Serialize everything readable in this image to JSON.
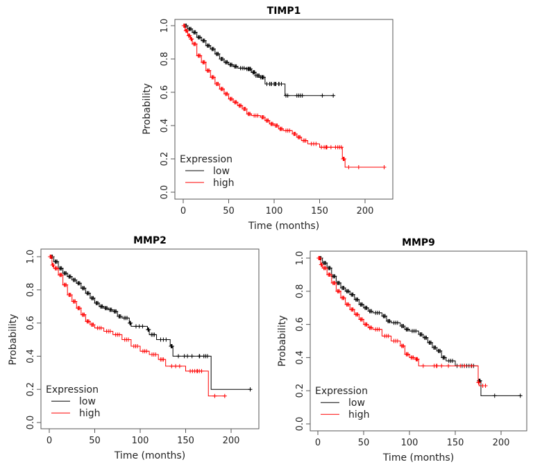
{
  "colors": {
    "low": "#000000",
    "high": "#ff0000",
    "axis": "#555555"
  },
  "chart_data": [
    {
      "type": "line",
      "title": "TIMP1",
      "xlabel": "Time (months)",
      "ylabel": "Probability",
      "xlim": [
        0,
        225
      ],
      "ylim": [
        0,
        1
      ],
      "xticks": [
        0,
        50,
        100,
        150,
        200
      ],
      "yticks": [
        "0.0",
        "0.2",
        "0.4",
        "0.6",
        "0.8",
        "1.0"
      ],
      "legend": {
        "title": "Expression",
        "position": "bottom-left",
        "entries": [
          "low",
          "high"
        ]
      },
      "series": [
        {
          "name": "low",
          "steps": [
            [
              0,
              1
            ],
            [
              5,
              0.98
            ],
            [
              10,
              0.96
            ],
            [
              15,
              0.93
            ],
            [
              20,
              0.91
            ],
            [
              25,
              0.88
            ],
            [
              30,
              0.86
            ],
            [
              35,
              0.83
            ],
            [
              40,
              0.8
            ],
            [
              45,
              0.78
            ],
            [
              50,
              0.765
            ],
            [
              55,
              0.755
            ],
            [
              60,
              0.745
            ],
            [
              70,
              0.74
            ],
            [
              75,
              0.72
            ],
            [
              80,
              0.7
            ],
            [
              85,
              0.69
            ],
            [
              90,
              0.65
            ],
            [
              112,
              0.58
            ],
            [
              166,
              0.58
            ]
          ],
          "censored": [
            70,
            72,
            74,
            78,
            80,
            85,
            87,
            92,
            95,
            97,
            100,
            102,
            105,
            108,
            113,
            115,
            125,
            127,
            129,
            131,
            153,
            165
          ]
        },
        {
          "name": "high",
          "steps": [
            [
              0,
              1
            ],
            [
              2,
              0.97
            ],
            [
              5,
              0.94
            ],
            [
              8,
              0.92
            ],
            [
              10,
              0.89
            ],
            [
              15,
              0.82
            ],
            [
              20,
              0.78
            ],
            [
              25,
              0.73
            ],
            [
              30,
              0.69
            ],
            [
              35,
              0.65
            ],
            [
              40,
              0.62
            ],
            [
              45,
              0.59
            ],
            [
              50,
              0.56
            ],
            [
              55,
              0.54
            ],
            [
              60,
              0.52
            ],
            [
              65,
              0.5
            ],
            [
              70,
              0.47
            ],
            [
              75,
              0.46
            ],
            [
              85,
              0.45
            ],
            [
              90,
              0.43
            ],
            [
              95,
              0.41
            ],
            [
              100,
              0.4
            ],
            [
              105,
              0.38
            ],
            [
              110,
              0.37
            ],
            [
              120,
              0.35
            ],
            [
              125,
              0.33
            ],
            [
              130,
              0.31
            ],
            [
              137,
              0.29
            ],
            [
              150,
              0.27
            ],
            [
              175,
              0.2
            ],
            [
              178,
              0.15
            ],
            [
              222,
              0.15
            ]
          ],
          "censored": [
            152,
            155,
            157,
            158,
            170,
            172,
            174,
            176,
            182,
            193,
            221
          ]
        }
      ]
    },
    {
      "type": "line",
      "title": "MMP2",
      "xlabel": "Time (months)",
      "ylabel": "Probability",
      "xlim": [
        0,
        225
      ],
      "ylim": [
        0,
        1
      ],
      "xticks": [
        0,
        50,
        100,
        150,
        200
      ],
      "yticks": [
        "0.0",
        "0.2",
        "0.4",
        "0.6",
        "0.8",
        "1.0"
      ],
      "legend": {
        "title": "Expression",
        "position": "bottom-left",
        "entries": [
          "low",
          "high"
        ]
      },
      "series": [
        {
          "name": "low",
          "steps": [
            [
              0,
              1
            ],
            [
              5,
              0.97
            ],
            [
              10,
              0.93
            ],
            [
              15,
              0.9
            ],
            [
              20,
              0.88
            ],
            [
              25,
              0.86
            ],
            [
              30,
              0.84
            ],
            [
              35,
              0.81
            ],
            [
              40,
              0.78
            ],
            [
              45,
              0.75
            ],
            [
              50,
              0.72
            ],
            [
              55,
              0.7
            ],
            [
              60,
              0.69
            ],
            [
              65,
              0.68
            ],
            [
              70,
              0.67
            ],
            [
              75,
              0.64
            ],
            [
              80,
              0.63
            ],
            [
              88,
              0.6
            ],
            [
              90,
              0.58
            ],
            [
              108,
              0.56
            ],
            [
              110,
              0.53
            ],
            [
              118,
              0.5
            ],
            [
              133,
              0.46
            ],
            [
              136,
              0.4
            ],
            [
              178,
              0.2
            ],
            [
              222,
              0.2
            ]
          ],
          "censored": [
            142,
            152,
            165,
            170,
            172,
            174,
            221
          ]
        },
        {
          "name": "high",
          "steps": [
            [
              0,
              1
            ],
            [
              3,
              0.95
            ],
            [
              5,
              0.93
            ],
            [
              10,
              0.89
            ],
            [
              15,
              0.83
            ],
            [
              20,
              0.77
            ],
            [
              25,
              0.73
            ],
            [
              30,
              0.69
            ],
            [
              35,
              0.65
            ],
            [
              40,
              0.61
            ],
            [
              45,
              0.59
            ],
            [
              50,
              0.57
            ],
            [
              60,
              0.55
            ],
            [
              70,
              0.53
            ],
            [
              80,
              0.5
            ],
            [
              90,
              0.46
            ],
            [
              100,
              0.43
            ],
            [
              110,
              0.41
            ],
            [
              120,
              0.38
            ],
            [
              128,
              0.34
            ],
            [
              150,
              0.31
            ],
            [
              175,
              0.16
            ],
            [
              194,
              0.16
            ]
          ],
          "censored": [
            155,
            160,
            163,
            165,
            182,
            193
          ]
        }
      ]
    },
    {
      "type": "line",
      "title": "MMP9",
      "xlabel": "Time (months)",
      "ylabel": "Probability",
      "xlim": [
        0,
        225
      ],
      "ylim": [
        0,
        1
      ],
      "xticks": [
        0,
        50,
        100,
        150,
        200
      ],
      "yticks": [
        "0.0",
        "0.2",
        "0.4",
        "0.6",
        "0.8",
        "1.0"
      ],
      "legend": {
        "title": "Expression",
        "position": "bottom-left",
        "entries": [
          "low",
          "high"
        ]
      },
      "series": [
        {
          "name": "low",
          "steps": [
            [
              0,
              1
            ],
            [
              5,
              0.97
            ],
            [
              10,
              0.94
            ],
            [
              15,
              0.89
            ],
            [
              20,
              0.85
            ],
            [
              25,
              0.82
            ],
            [
              30,
              0.8
            ],
            [
              35,
              0.78
            ],
            [
              40,
              0.75
            ],
            [
              45,
              0.72
            ],
            [
              50,
              0.7
            ],
            [
              55,
              0.68
            ],
            [
              60,
              0.67
            ],
            [
              70,
              0.65
            ],
            [
              75,
              0.62
            ],
            [
              80,
              0.61
            ],
            [
              90,
              0.59
            ],
            [
              95,
              0.57
            ],
            [
              100,
              0.56
            ],
            [
              110,
              0.54
            ],
            [
              115,
              0.52
            ],
            [
              120,
              0.49
            ],
            [
              125,
              0.46
            ],
            [
              130,
              0.44
            ],
            [
              135,
              0.4
            ],
            [
              140,
              0.38
            ],
            [
              150,
              0.35
            ],
            [
              175,
              0.26
            ],
            [
              178,
              0.17
            ],
            [
              222,
              0.17
            ]
          ],
          "censored": [
            152,
            160,
            165,
            170,
            193,
            221
          ]
        },
        {
          "name": "high",
          "steps": [
            [
              0,
              1
            ],
            [
              3,
              0.96
            ],
            [
              5,
              0.94
            ],
            [
              10,
              0.9
            ],
            [
              15,
              0.85
            ],
            [
              20,
              0.8
            ],
            [
              25,
              0.76
            ],
            [
              30,
              0.72
            ],
            [
              35,
              0.69
            ],
            [
              40,
              0.66
            ],
            [
              45,
              0.63
            ],
            [
              50,
              0.6
            ],
            [
              55,
              0.58
            ],
            [
              60,
              0.57
            ],
            [
              70,
              0.53
            ],
            [
              80,
              0.5
            ],
            [
              90,
              0.47
            ],
            [
              95,
              0.42
            ],
            [
              100,
              0.4
            ],
            [
              106,
              0.39
            ],
            [
              110,
              0.35
            ],
            [
              175,
              0.25
            ],
            [
              176,
              0.23
            ],
            [
              183,
              0.23
            ]
          ],
          "censored": [
            115,
            127,
            130,
            135,
            160,
            168,
            180,
            183
          ]
        }
      ]
    }
  ]
}
